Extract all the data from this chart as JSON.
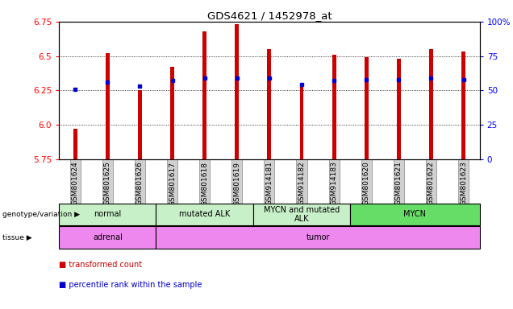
{
  "title": "GDS4621 / 1452978_at",
  "samples": [
    "GSM801624",
    "GSM801625",
    "GSM801626",
    "GSM801617",
    "GSM801618",
    "GSM801619",
    "GSM914181",
    "GSM914182",
    "GSM914183",
    "GSM801620",
    "GSM801621",
    "GSM801622",
    "GSM801623"
  ],
  "red_values": [
    5.97,
    6.52,
    6.25,
    6.42,
    6.68,
    6.73,
    6.55,
    6.28,
    6.51,
    6.49,
    6.48,
    6.55,
    6.53
  ],
  "blue_values": [
    6.26,
    6.31,
    6.28,
    6.32,
    6.34,
    6.34,
    6.34,
    6.29,
    6.32,
    6.33,
    6.33,
    6.34,
    6.33
  ],
  "ymin": 5.75,
  "ymax": 6.75,
  "y2min": 0,
  "y2max": 100,
  "yticks": [
    5.75,
    6.0,
    6.25,
    6.5,
    6.75
  ],
  "y2ticks": [
    0,
    25,
    50,
    75,
    100
  ],
  "genotype_groups": [
    {
      "label": "normal",
      "start": 0,
      "end": 3,
      "color": "#c8f0c8"
    },
    {
      "label": "mutated ALK",
      "start": 3,
      "end": 6,
      "color": "#c8f0c8"
    },
    {
      "label": "MYCN and mutated\nALK",
      "start": 6,
      "end": 9,
      "color": "#c8f0c8"
    },
    {
      "label": "MYCN",
      "start": 9,
      "end": 13,
      "color": "#66dd66"
    }
  ],
  "tissue_groups": [
    {
      "label": "adrenal",
      "start": 0,
      "end": 3,
      "color": "#ee88ee"
    },
    {
      "label": "tumor",
      "start": 3,
      "end": 13,
      "color": "#ee88ee"
    }
  ],
  "bar_color": "#cc0000",
  "dot_color": "#0000cc",
  "bar_bottom": 5.75,
  "bar_width": 0.12,
  "legend_red": "transformed count",
  "legend_blue": "percentile rank within the sample"
}
